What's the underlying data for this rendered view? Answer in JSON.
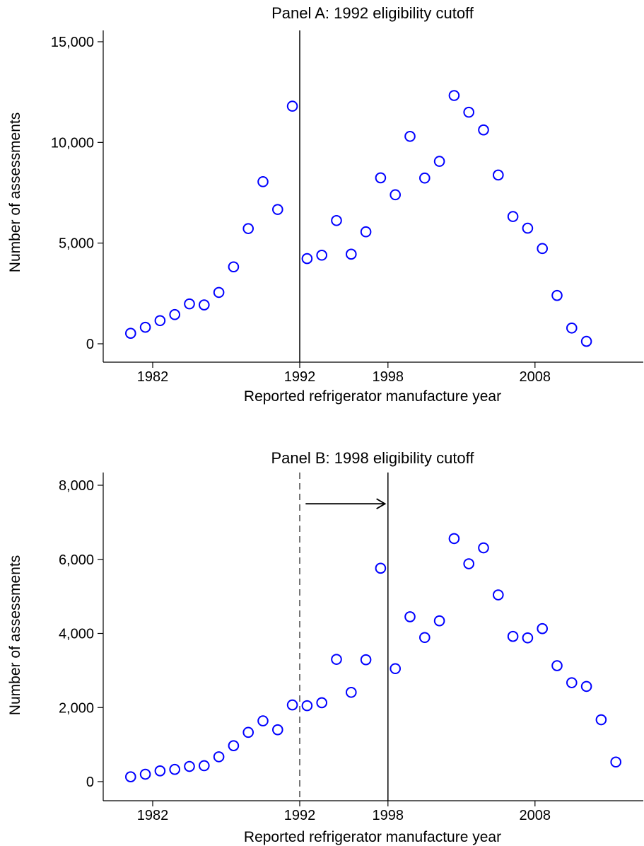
{
  "chart_data": [
    {
      "type": "scatter",
      "title": "Panel A: 1992 eligibility cutoff",
      "xlabel": "Reported refrigerator manufacture year",
      "ylabel": "Number of assessments",
      "xlim": [
        1979.2,
        2013.4
      ],
      "ylim": [
        0,
        15000
      ],
      "xticks": [
        1982,
        1992,
        1998,
        2008
      ],
      "xtick_labels": [
        "1982",
        "1992",
        "1998",
        "2008"
      ],
      "yticks": [
        0,
        5000,
        10000,
        15000
      ],
      "ytick_labels": [
        "0",
        "5,000",
        "10,000",
        "15,000"
      ],
      "grid": false,
      "marker_color": "#0000ff",
      "cutoff_lines": [
        {
          "x": 1992,
          "style": "solid"
        }
      ],
      "x": [
        1980.5,
        1981.5,
        1982.5,
        1983.5,
        1984.5,
        1985.5,
        1986.5,
        1987.5,
        1988.5,
        1989.5,
        1990.5,
        1991.5,
        1992.5,
        1993.5,
        1994.5,
        1995.5,
        1996.5,
        1997.5,
        1998.5,
        1999.5,
        2000.5,
        2001.5,
        2002.5,
        2003.5,
        2004.5,
        2005.5,
        2006.5,
        2007.5,
        2008.5,
        2009.5,
        2010.5,
        2011.5
      ],
      "y": [
        520,
        820,
        1150,
        1450,
        1980,
        1930,
        2550,
        3820,
        5720,
        8050,
        6670,
        11800,
        4230,
        4400,
        6120,
        4450,
        5560,
        8240,
        7400,
        10300,
        8230,
        9060,
        12330,
        11500,
        10620,
        8380,
        6320,
        5740,
        4730,
        2400,
        780,
        120
      ]
    },
    {
      "type": "scatter",
      "title": "Panel B: 1998 eligibility cutoff",
      "xlabel": "Reported refrigerator manufacture year",
      "ylabel": "Number of assessments",
      "xlim": [
        1979.2,
        2013.4
      ],
      "ylim": [
        0,
        8000
      ],
      "xticks": [
        1982,
        1992,
        1998,
        2008
      ],
      "xtick_labels": [
        "1982",
        "1992",
        "1998",
        "2008"
      ],
      "yticks": [
        0,
        2000,
        4000,
        6000,
        8000
      ],
      "ytick_labels": [
        "0",
        "2,000",
        "4,000",
        "6,000",
        "8,000"
      ],
      "grid": false,
      "marker_color": "#0000ff",
      "cutoff_lines": [
        {
          "x": 1992,
          "style": "dashed"
        },
        {
          "x": 1998,
          "style": "solid"
        }
      ],
      "arrow": {
        "from_x": 1992.4,
        "to_x": 1997.8,
        "y": 7500
      },
      "x": [
        1980.5,
        1981.5,
        1982.5,
        1983.5,
        1984.5,
        1985.5,
        1986.5,
        1987.5,
        1988.5,
        1989.5,
        1990.5,
        1991.5,
        1992.5,
        1993.5,
        1994.5,
        1995.5,
        1996.5,
        1997.5,
        1998.5,
        1999.5,
        2000.5,
        2001.5,
        2002.5,
        2003.5,
        2004.5,
        2005.5,
        2006.5,
        2007.5,
        2008.5,
        2009.5,
        2010.5,
        2011.5,
        2012.5,
        2013.5
      ],
      "y": [
        130,
        200,
        290,
        330,
        410,
        430,
        670,
        970,
        1330,
        1640,
        1400,
        2070,
        2050,
        2130,
        3300,
        2410,
        3290,
        5760,
        3050,
        4450,
        3890,
        4340,
        6560,
        5880,
        6310,
        5040,
        3920,
        3880,
        4130,
        3130,
        2670,
        2570,
        1670,
        530
      ]
    }
  ]
}
